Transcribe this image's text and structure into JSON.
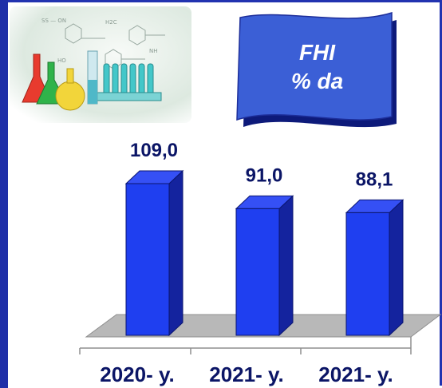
{
  "banner": {
    "line1": "FHI",
    "line2": "% da"
  },
  "chart_data": {
    "type": "bar",
    "categories": [
      "2020- y.",
      "2021- y.",
      "2021- y."
    ],
    "values": [
      109.0,
      91.0,
      88.1
    ],
    "value_labels": [
      "109,0",
      "91,0",
      "88,1"
    ],
    "title": "",
    "xlabel": "",
    "ylabel": "",
    "ylim": [
      0,
      120
    ],
    "grid": false,
    "legend": "none",
    "bar_color": "#1f3ff0",
    "bar_side_color": "#14239e",
    "floor_color": "#b8b8b8"
  },
  "colors": {
    "frame": "#2233b0",
    "banner": "#3b5fd6",
    "text": "#0b1566"
  },
  "icons": {
    "photo": "chemistry-glassware-image"
  }
}
